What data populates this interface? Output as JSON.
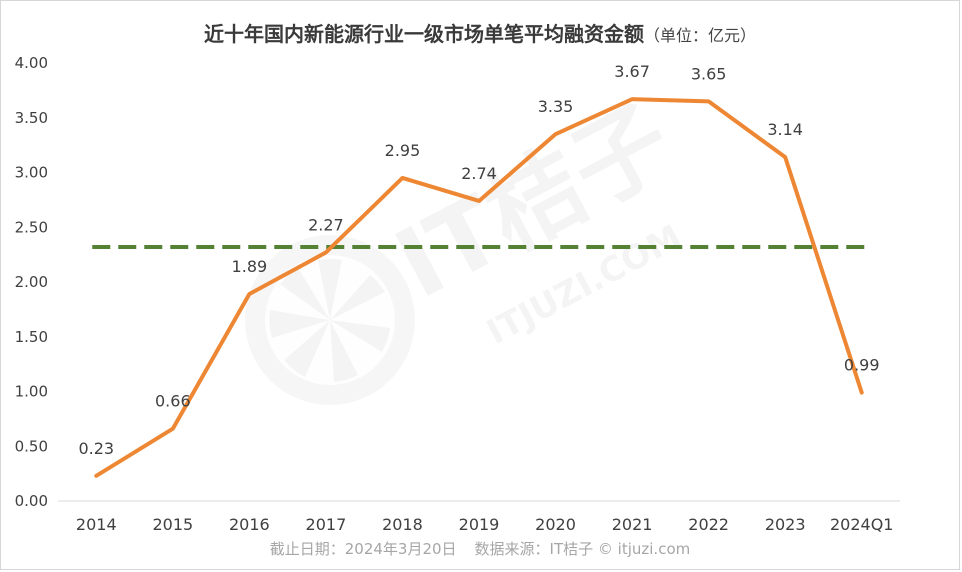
{
  "chart_data": {
    "type": "line",
    "title": "近十年国内新能源行业一级市场单笔平均融资金额",
    "unit": "（单位：亿元）",
    "categories": [
      "2014",
      "2015",
      "2016",
      "2017",
      "2018",
      "2019",
      "2020",
      "2021",
      "2022",
      "2023",
      "2024Q1"
    ],
    "series": [
      {
        "values": [
          0.23,
          0.66,
          1.89,
          2.27,
          2.95,
          2.74,
          3.35,
          3.67,
          3.65,
          3.14,
          0.99
        ]
      }
    ],
    "average_line": 2.32,
    "ylim": [
      0,
      4
    ],
    "yticks": [
      0,
      0.5,
      1,
      1.5,
      2,
      2.5,
      3,
      3.5,
      4
    ],
    "ytick_labels": [
      "0.00",
      "0.50",
      "1.00",
      "1.50",
      "2.00",
      "2.50",
      "3.00",
      "3.50",
      "4.00"
    ],
    "data_labels": [
      "0.23",
      "0.66",
      "1.89",
      "2.27",
      "2.95",
      "2.74",
      "3.35",
      "3.67",
      "3.65",
      "3.14",
      "0.99"
    ],
    "grid": false,
    "colors": {
      "line": "#ee8733",
      "average": "#548235",
      "axis": "#d9d9d9",
      "text": "#404040"
    }
  },
  "footer": {
    "date": "截止日期：2024年3月20日",
    "source": "数据来源：IT桔子 © itjuzi.com"
  },
  "watermark": {
    "brand": "IT桔子",
    "site": "ITJUZI.COM"
  }
}
